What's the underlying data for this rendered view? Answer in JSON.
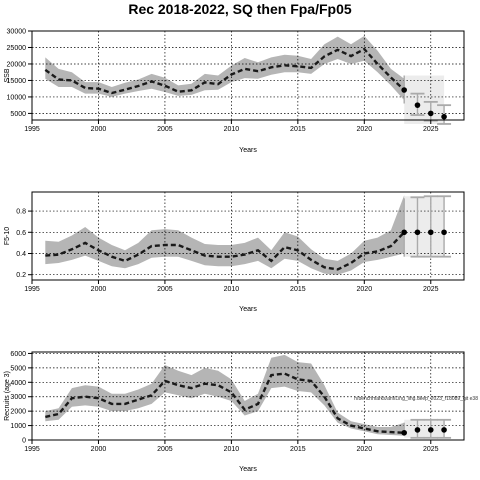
{
  "title": "Rec 2018-2022, SQ then Fpa/Fp05",
  "colors": {
    "band": "#b5b5b5",
    "line": "#1a1a1a",
    "proj_band": "#c8c8c8",
    "grid": "#000000"
  },
  "chart_data": [
    {
      "type": "line",
      "ylabel": "SSB",
      "xlabel": "Years",
      "xlim": [
        1995,
        2027.5
      ],
      "ylim": [
        3000,
        30000
      ],
      "xticks": [
        1995,
        2000,
        2005,
        2010,
        2015,
        2020,
        2025
      ],
      "yticks": [
        5000,
        10000,
        15000,
        20000,
        25000,
        30000
      ],
      "xtick_labels": [
        "1995",
        "2000",
        "2005",
        "2010",
        "2015",
        "2020",
        "2025"
      ],
      "ytick_labels": [
        "5000",
        "10000",
        "15000",
        "20000",
        "25000",
        "30000"
      ],
      "grid": true,
      "series": [
        {
          "x": [
            1996,
            1997,
            1998,
            1999,
            2000,
            2001,
            2002,
            2003,
            2004,
            2005,
            2006,
            2007,
            2008,
            2009,
            2010,
            2011,
            2012,
            2013,
            2014,
            2015,
            2016,
            2017,
            2018,
            2019,
            2020,
            2021,
            2022,
            2023
          ],
          "y": [
            18200,
            15300,
            15000,
            12700,
            12500,
            11200,
            12200,
            13300,
            14700,
            13400,
            11600,
            12000,
            14400,
            13900,
            16800,
            18500,
            17800,
            19000,
            19600,
            19300,
            18800,
            22300,
            24300,
            22400,
            24500,
            20000,
            15900,
            12100
          ],
          "lower": [
            15500,
            13000,
            13000,
            11000,
            11000,
            10000,
            11000,
            11800,
            12500,
            11500,
            10300,
            10600,
            12000,
            12200,
            14500,
            15700,
            15500,
            16700,
            17500,
            17500,
            17000,
            20000,
            21500,
            20000,
            21000,
            17500,
            13500,
            9000
          ],
          "upper": [
            22000,
            18500,
            17500,
            14500,
            14500,
            13000,
            14300,
            15300,
            17000,
            15800,
            13500,
            14000,
            17000,
            16500,
            19500,
            21800,
            20500,
            22000,
            22800,
            22500,
            21500,
            26000,
            28300,
            26000,
            28500,
            24000,
            18500,
            15500
          ]
        }
      ],
      "projection": {
        "x": [
          2023,
          2024,
          2025,
          2026
        ],
        "y": [
          12100,
          7500,
          5000,
          4000
        ],
        "lower": [
          8000,
          4500,
          2800,
          1800
        ],
        "upper": [
          16500,
          11000,
          8500,
          7500
        ]
      }
    },
    {
      "type": "line",
      "ylabel": "F5-10",
      "xlabel": "Years",
      "xlim": [
        1995,
        2027.5
      ],
      "ylim": [
        0.15,
        0.98
      ],
      "xticks": [
        1995,
        2000,
        2005,
        2010,
        2015,
        2020,
        2025
      ],
      "yticks": [
        0.2,
        0.4,
        0.6,
        0.8
      ],
      "xtick_labels": [
        "1995",
        "2000",
        "2005",
        "2010",
        "2015",
        "2020",
        "2025"
      ],
      "ytick_labels": [
        "0.2",
        "0.4",
        "0.6",
        "0.8"
      ],
      "grid": true,
      "series": [
        {
          "x": [
            1996,
            1997,
            1998,
            1999,
            2000,
            2001,
            2002,
            2003,
            2004,
            2005,
            2006,
            2007,
            2008,
            2009,
            2010,
            2011,
            2012,
            2013,
            2014,
            2015,
            2016,
            2017,
            2018,
            2019,
            2020,
            2021,
            2022,
            2023
          ],
          "y": [
            0.38,
            0.39,
            0.44,
            0.5,
            0.43,
            0.37,
            0.33,
            0.39,
            0.47,
            0.48,
            0.48,
            0.43,
            0.38,
            0.37,
            0.37,
            0.39,
            0.43,
            0.33,
            0.46,
            0.43,
            0.34,
            0.27,
            0.25,
            0.31,
            0.4,
            0.42,
            0.47,
            0.6
          ],
          "lower": [
            0.3,
            0.31,
            0.34,
            0.38,
            0.33,
            0.28,
            0.26,
            0.3,
            0.36,
            0.37,
            0.37,
            0.33,
            0.29,
            0.28,
            0.28,
            0.3,
            0.33,
            0.26,
            0.35,
            0.33,
            0.26,
            0.21,
            0.2,
            0.24,
            0.32,
            0.34,
            0.37,
            0.4
          ],
          "upper": [
            0.52,
            0.51,
            0.57,
            0.65,
            0.55,
            0.48,
            0.43,
            0.5,
            0.62,
            0.63,
            0.62,
            0.55,
            0.49,
            0.48,
            0.48,
            0.5,
            0.55,
            0.43,
            0.6,
            0.56,
            0.44,
            0.35,
            0.33,
            0.4,
            0.52,
            0.55,
            0.62,
            0.95
          ]
        }
      ],
      "projection": {
        "x": [
          2023,
          2024,
          2025,
          2026
        ],
        "y": [
          0.6,
          0.6,
          0.6,
          0.6
        ],
        "lower": [
          0.37,
          0.37,
          0.37,
          0.37
        ],
        "upper": [
          0.92,
          0.93,
          0.94,
          0.94
        ]
      }
    },
    {
      "type": "line",
      "ylabel": "Recruits (age 3)",
      "xlabel": "Years",
      "xlim": [
        1995,
        2027.5
      ],
      "ylim": [
        0,
        6100
      ],
      "xticks": [
        1995,
        2000,
        2005,
        2010,
        2015,
        2020,
        2025
      ],
      "yticks": [
        0,
        1000,
        2000,
        3000,
        4000,
        5000,
        6000
      ],
      "xtick_labels": [
        "1995",
        "2000",
        "2005",
        "2010",
        "2015",
        "2020",
        "2025"
      ],
      "ytick_labels": [
        "0",
        "1000",
        "2000",
        "3000",
        "4000",
        "5000",
        "6000"
      ],
      "grid": true,
      "annotation": "h/benchmarks/anf/Ling_ling.deep_2023_r18089_git e38",
      "series": [
        {
          "x": [
            1996,
            1997,
            1998,
            1999,
            2000,
            2001,
            2002,
            2003,
            2004,
            2005,
            2006,
            2007,
            2008,
            2009,
            2010,
            2011,
            2012,
            2013,
            2014,
            2015,
            2016,
            2017,
            2018,
            2019,
            2020,
            2021,
            2022,
            2023
          ],
          "y": [
            1600,
            1800,
            2900,
            3000,
            2900,
            2500,
            2500,
            2800,
            3100,
            4100,
            3800,
            3600,
            3900,
            3800,
            3300,
            2100,
            2500,
            4500,
            4600,
            4200,
            4100,
            3000,
            1500,
            1000,
            800,
            600,
            550,
            500
          ],
          "lower": [
            1300,
            1400,
            2300,
            2400,
            2300,
            2000,
            2000,
            2200,
            2500,
            3300,
            3100,
            2900,
            3200,
            3000,
            2700,
            1700,
            2000,
            3600,
            3700,
            3400,
            3300,
            2400,
            1200,
            800,
            600,
            400,
            350,
            300
          ],
          "upper": [
            2000,
            2200,
            3600,
            3800,
            3700,
            3200,
            3200,
            3500,
            3900,
            5200,
            4800,
            4500,
            5000,
            4800,
            4200,
            2700,
            3200,
            5700,
            5900,
            5400,
            5300,
            3800,
            1900,
            1300,
            1100,
            900,
            900,
            1200
          ]
        }
      ],
      "projection": {
        "x": [
          2023,
          2024,
          2025,
          2026
        ],
        "y": [
          500,
          700,
          700,
          700
        ],
        "lower": [
          300,
          150,
          150,
          150
        ],
        "upper": [
          1200,
          1400,
          1400,
          1400
        ]
      }
    }
  ]
}
